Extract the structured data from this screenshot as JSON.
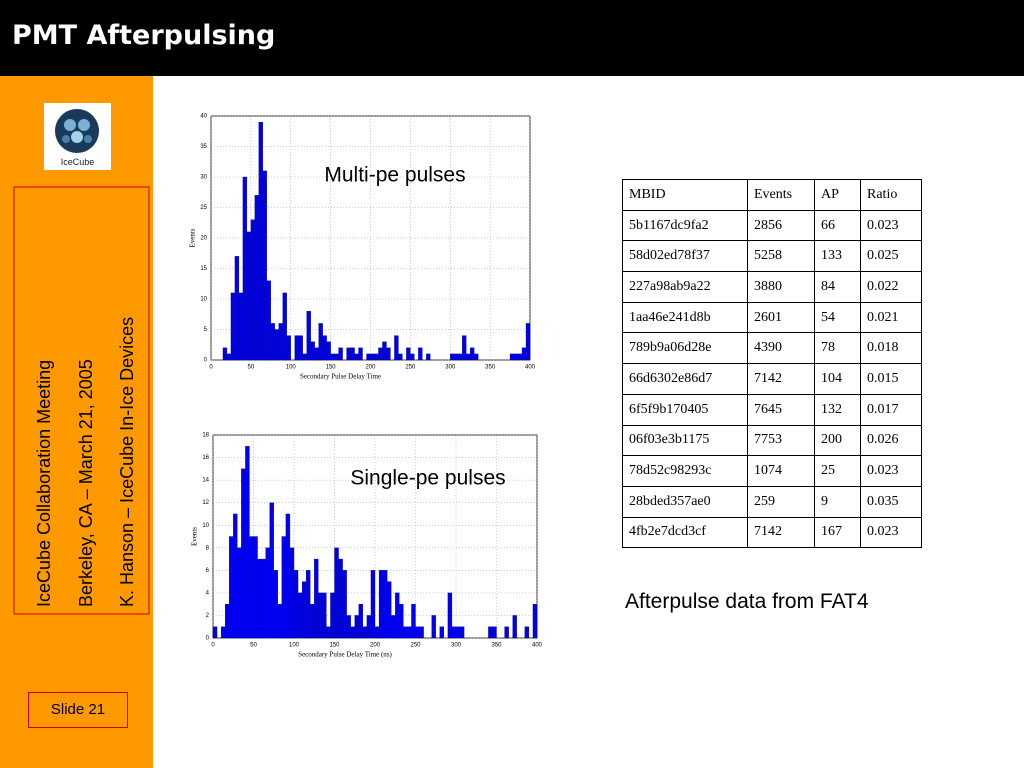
{
  "header": {
    "title": "PMT Afterpulsing"
  },
  "sidebar": {
    "logo": "IceCube",
    "lines": [
      "IceCube Collaboration Meeting",
      "Berkeley, CA – March 21, 2005",
      "K. Hanson – IceCube In-Ice Devices"
    ],
    "slide": "Slide 21"
  },
  "chart_data": [
    {
      "type": "histogram",
      "annotation": "Multi-pe pulses",
      "x_label": "Secondary Pulse Delay Time",
      "y_label": "Events",
      "color": "#0000ee",
      "bins": [
        0,
        5,
        10,
        15,
        20,
        25,
        30,
        35,
        40,
        45,
        50,
        55,
        60,
        65,
        70,
        75,
        80,
        85,
        90,
        95,
        100,
        105,
        110,
        115,
        120,
        125,
        130,
        135,
        140,
        145,
        150,
        155,
        160,
        165,
        170,
        175,
        180,
        185,
        190,
        195,
        200,
        205,
        210,
        215,
        220,
        225,
        230,
        235,
        240,
        245,
        250,
        255,
        260,
        265,
        270,
        275,
        280,
        285,
        290,
        295,
        300,
        305,
        310,
        315,
        320,
        325,
        330,
        335,
        340,
        345,
        350,
        355,
        360,
        365,
        370,
        375,
        380,
        385,
        390,
        395,
        400
      ],
      "values": [
        0,
        0,
        0,
        2,
        1,
        11,
        17,
        11,
        30,
        21,
        23,
        27,
        39,
        31,
        13,
        6,
        5,
        6,
        11,
        4,
        0,
        4,
        4,
        1,
        8,
        3,
        2,
        6,
        4,
        3,
        1,
        1,
        2,
        0,
        2,
        2,
        1,
        2,
        0,
        1,
        1,
        1,
        2,
        3,
        2,
        0,
        4,
        1,
        0,
        2,
        1,
        0,
        2,
        0,
        1,
        0,
        0,
        0,
        0,
        0,
        1,
        1,
        1,
        4,
        1,
        2,
        1,
        0,
        0,
        0,
        0,
        0,
        0,
        0,
        0,
        1,
        1,
        1,
        2,
        6
      ],
      "xlim": [
        0,
        400
      ],
      "xticks": [
        0,
        50,
        100,
        150,
        200,
        250,
        300,
        350,
        400
      ],
      "ylim": [
        0,
        40
      ],
      "yticks": [
        0,
        5,
        10,
        15,
        20,
        25,
        30,
        35,
        40
      ],
      "grid": true
    },
    {
      "type": "histogram",
      "annotation": "Single-pe pulses",
      "x_label": "Secondary Pulse Delay Time (ns)",
      "y_label": "Events",
      "color": "#0000ee",
      "bins": [
        0,
        5,
        10,
        15,
        20,
        25,
        30,
        35,
        40,
        45,
        50,
        55,
        60,
        65,
        70,
        75,
        80,
        85,
        90,
        95,
        100,
        105,
        110,
        115,
        120,
        125,
        130,
        135,
        140,
        145,
        150,
        155,
        160,
        165,
        170,
        175,
        180,
        185,
        190,
        195,
        200,
        205,
        210,
        215,
        220,
        225,
        230,
        235,
        240,
        245,
        250,
        255,
        260,
        265,
        270,
        275,
        280,
        285,
        290,
        295,
        300,
        305,
        310,
        315,
        320,
        325,
        330,
        335,
        340,
        345,
        350,
        355,
        360,
        365,
        370,
        375,
        380,
        385,
        390,
        395,
        400
      ],
      "values": [
        1,
        0,
        1,
        3,
        9,
        11,
        8,
        15,
        17,
        9,
        9,
        7,
        7,
        8,
        12,
        6,
        3,
        9,
        11,
        8,
        6,
        4,
        5,
        6,
        3,
        7,
        4,
        4,
        1,
        4,
        8,
        7,
        6,
        2,
        1,
        2,
        3,
        1,
        2,
        6,
        1,
        6,
        6,
        5,
        2,
        4,
        3,
        1,
        1,
        3,
        1,
        1,
        0,
        0,
        2,
        0,
        1,
        0,
        4,
        1,
        1,
        1,
        0,
        0,
        0,
        0,
        0,
        0,
        1,
        1,
        0,
        0,
        1,
        0,
        2,
        0,
        0,
        1,
        0,
        3
      ],
      "xlim": [
        0,
        400
      ],
      "xticks": [
        0,
        50,
        100,
        150,
        200,
        250,
        300,
        350,
        400
      ],
      "ylim": [
        0,
        18
      ],
      "yticks": [
        0,
        2,
        4,
        6,
        8,
        10,
        12,
        14,
        16,
        18
      ],
      "grid": true
    }
  ],
  "table": {
    "caption": "Afterpulse data from FAT4",
    "header": [
      "MBID",
      "Events",
      "AP",
      "Ratio"
    ],
    "rows": [
      [
        "5b1167dc9fa2",
        2856,
        66,
        0.023
      ],
      [
        "58d02ed78f37",
        5258,
        133,
        0.025
      ],
      [
        "227a98ab9a22",
        3880,
        84,
        0.022
      ],
      [
        "1aa46e241d8b",
        2601,
        54,
        0.021
      ],
      [
        "789b9a06d28e",
        4390,
        78,
        0.018
      ],
      [
        "66d6302e86d7",
        7142,
        104,
        0.015
      ],
      [
        "6f5f9b170405",
        7645,
        132,
        0.017
      ],
      [
        "06f03e3b1175",
        7753,
        200,
        0.026
      ],
      [
        "78d52c98293c",
        1074,
        25,
        0.023
      ],
      [
        "28bded357ae0",
        259,
        9,
        0.035
      ],
      [
        "4fb2e7dcd3cf",
        7142,
        167,
        0.023
      ]
    ]
  }
}
